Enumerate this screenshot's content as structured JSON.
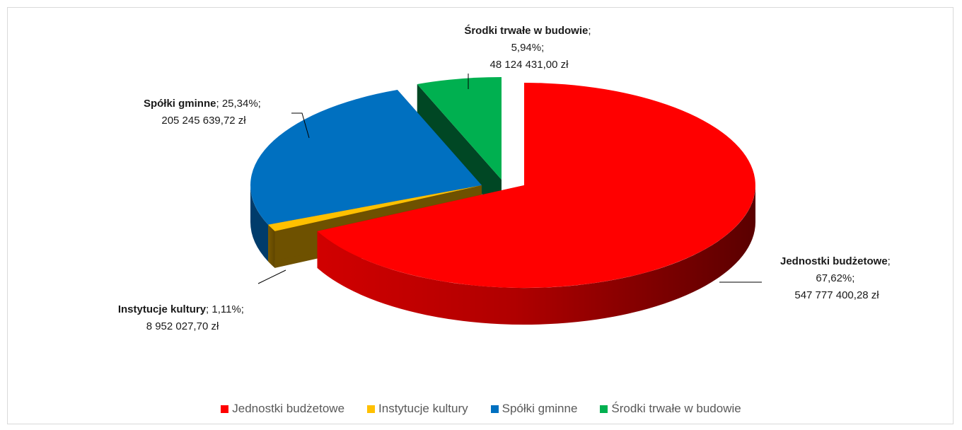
{
  "chart_data": {
    "type": "pie",
    "style": "3d-exploded",
    "title": "",
    "categories": [
      "Jednostki budżetowe",
      "Instytucje kultury",
      "Spółki gminne",
      "Środki trwałe w budowie"
    ],
    "values": [
      547777400.28,
      8952027.7,
      205245639.72,
      48124431.0
    ],
    "percentages": [
      67.62,
      1.11,
      25.34,
      5.94
    ],
    "colors": [
      "#ff0000",
      "#ffc000",
      "#0070c0",
      "#00b050"
    ],
    "labels": [
      {
        "name": "Jednostki budżetowe",
        "percent": "67,62%;",
        "amount": "547 777 400,28 zł"
      },
      {
        "name": "Instytucje kultury",
        "percent": "1,11%;",
        "amount": "8 952 027,70 zł"
      },
      {
        "name": "Spółki gminne",
        "percent": "25,34%;",
        "amount": "205 245 639,72 zł"
      },
      {
        "name": "Środki trwałe w budowie",
        "percent": "5,94%;",
        "amount": "48 124 431,00 zł"
      }
    ],
    "legend_position": "bottom",
    "legend": [
      "Jednostki budżetowe",
      "Instytucje kultury",
      "Spółki gminne",
      "Środki trwałe w budowie"
    ]
  }
}
